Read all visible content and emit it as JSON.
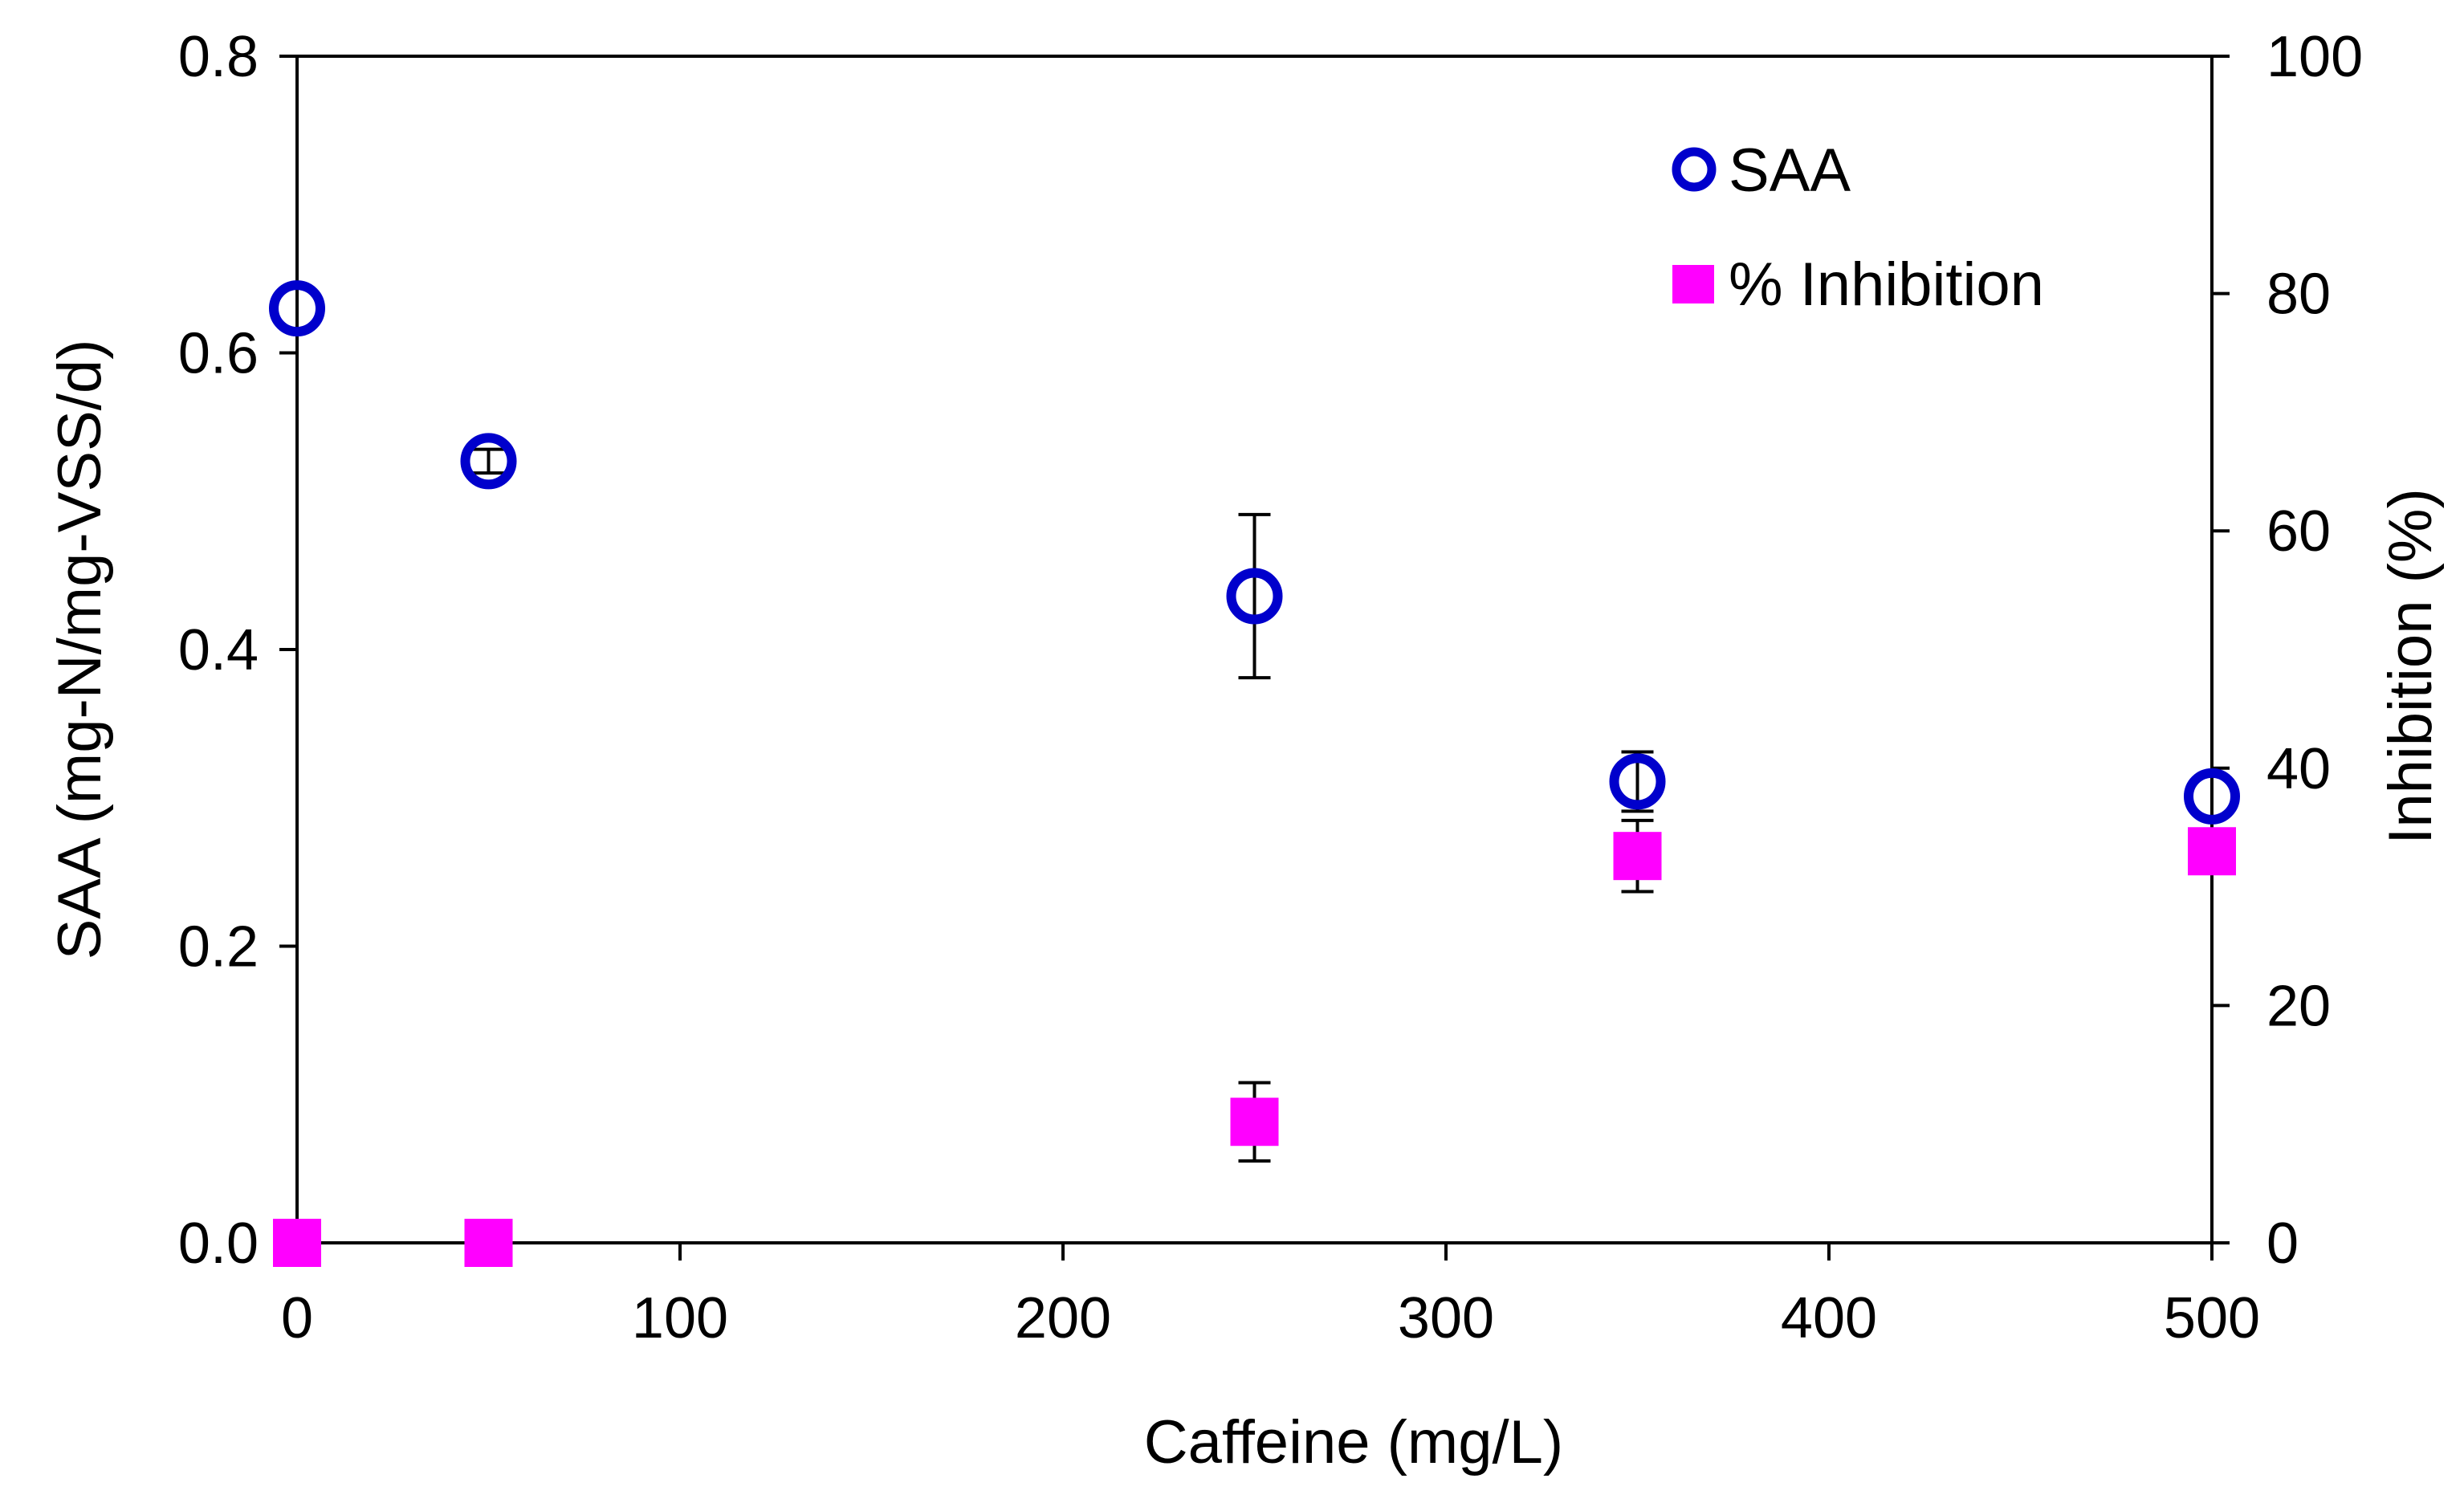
{
  "chart_data": {
    "type": "scatter",
    "title": "",
    "xlabel": "Caffeine (mg/L)",
    "ylabel": "SAA (mg-N/mg-VSS/d)",
    "y2label": "Inhibition (%)",
    "xlim": [
      0,
      500
    ],
    "ylim": [
      0,
      0.8
    ],
    "y2lim": [
      0,
      100
    ],
    "x_ticks": [
      "0",
      "100",
      "200",
      "300",
      "400",
      "500"
    ],
    "y_ticks": [
      "0.0",
      "0.2",
      "0.4",
      "0.6",
      "0.8"
    ],
    "y2_ticks": [
      "0",
      "20",
      "40",
      "60",
      "80",
      "100"
    ],
    "grid": false,
    "legend_position": "top-right",
    "series": [
      {
        "name": "SAA",
        "axis": "left",
        "marker": "open-circle",
        "color": "#0000cc",
        "x": [
          0,
          50,
          250,
          350,
          500
        ],
        "y": [
          0.63,
          0.527,
          0.436,
          0.311,
          0.301
        ],
        "err": [
          0,
          0.008,
          0.055,
          0.02,
          0
        ]
      },
      {
        "name": "% Inhibition",
        "axis": "right",
        "marker": "filled-square",
        "color": "#ff00ff",
        "x": [
          0,
          50,
          250,
          350,
          500
        ],
        "y": [
          0,
          0,
          10.2,
          32.6,
          33.0
        ],
        "err": [
          0,
          0,
          3.3,
          3.0,
          1.7
        ]
      }
    ]
  }
}
